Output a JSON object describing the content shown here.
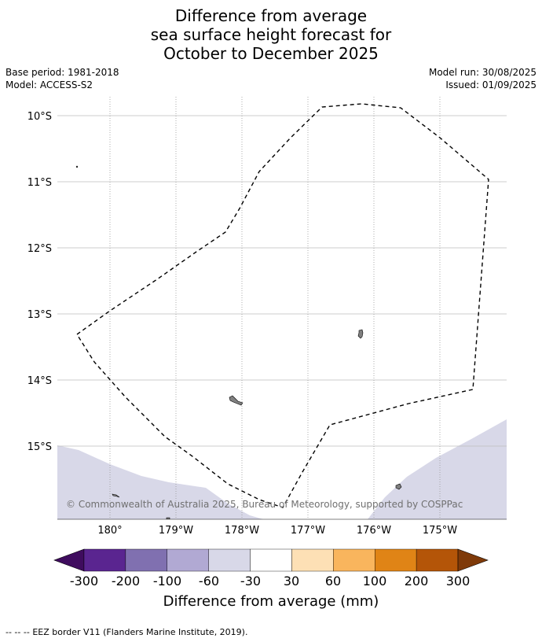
{
  "title": {
    "line1": "Difference from average",
    "line2": "sea surface height forecast for",
    "line3": "October to December 2025"
  },
  "meta": {
    "base_period": "Base period: 1981-2018",
    "model": "Model: ACCESS-S2",
    "model_run": "Model run: 30/08/2025",
    "issued": "Issued: 01/09/2025"
  },
  "map": {
    "lat_labels": [
      "10°S",
      "11°S",
      "12°S",
      "13°S",
      "14°S",
      "15°S"
    ],
    "lon_labels": [
      "180°",
      "179°W",
      "178°W",
      "177°W",
      "176°W",
      "175°W"
    ],
    "copyright": "© Commonwealth of Australia 2025, Bureau of Meteorology, supported by COSPPac",
    "anomaly_color": "#d8d8e8",
    "anomaly_category": "-60 to -30"
  },
  "colorbar": {
    "ticks": [
      "-300",
      "-200",
      "-100",
      "-60",
      "-30",
      "30",
      "60",
      "100",
      "200",
      "300"
    ],
    "colors": [
      "#3f0c5e",
      "#5a2590",
      "#8070b0",
      "#b1a9d3",
      "#d8d8e8",
      "#ffffff",
      "#fde0b5",
      "#f9b55d",
      "#e08416",
      "#b45508",
      "#7f3a09"
    ],
    "label": "Difference from average (mm)"
  },
  "footer": {
    "legend_symbol": "-- -- --",
    "legend_text": "EEZ border V11 (Flanders Marine Institute, 2019)."
  }
}
